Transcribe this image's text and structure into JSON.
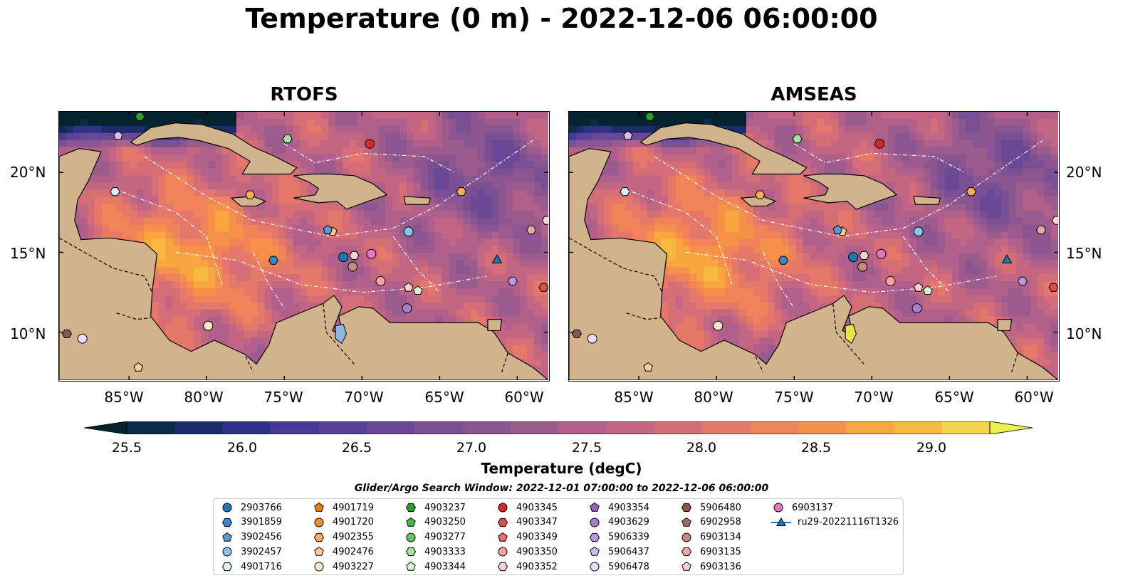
{
  "title": "Temperature (0 m) - 2022-12-06 06:00:00",
  "panels": [
    {
      "title": "RTOFS"
    },
    {
      "title": "AMSEAS"
    }
  ],
  "lat_labels": [
    "20°N",
    "15°N",
    "10°N"
  ],
  "lon_labels": [
    "85°W",
    "80°W",
    "75°W",
    "70°W",
    "65°W",
    "60°W"
  ],
  "colorbar": {
    "label": "Temperature (degC)",
    "ticks": [
      "25.5",
      "26.0",
      "26.5",
      "27.0",
      "27.5",
      "28.0",
      "28.5",
      "29.0"
    ],
    "colors": [
      "#05232e",
      "#0c2a4a",
      "#1c2c6a",
      "#2e3288",
      "#453a96",
      "#5a4198",
      "#6a4895",
      "#7a4f93",
      "#8a5590",
      "#9c5b8d",
      "#b0608a",
      "#c36684",
      "#d66e77",
      "#e6786a",
      "#f0835a",
      "#f7914a",
      "#f8a63f",
      "#f6ba40",
      "#f2d44d",
      "#eef04f"
    ]
  },
  "search_window": "Glider/Argo Search Window: 2022-12-01 07:00:00 to 2022-12-06 06:00:00",
  "legend": [
    {
      "label": "2903766",
      "color": "#1f77b4",
      "shape": "circle"
    },
    {
      "label": "3901859",
      "color": "#3d88c4",
      "shape": "hexagon"
    },
    {
      "label": "3902456",
      "color": "#5b9bd5",
      "shape": "pentagon"
    },
    {
      "label": "3902457",
      "color": "#8ec1e8",
      "shape": "circle"
    },
    {
      "label": "4901716",
      "color": "#dbeefb",
      "shape": "hexagon"
    },
    {
      "label": "4901719",
      "color": "#f07f0e",
      "shape": "pentagon"
    },
    {
      "label": "4901720",
      "color": "#f5922e",
      "shape": "circle"
    },
    {
      "label": "4902355",
      "color": "#f9ae5a",
      "shape": "hexagon"
    },
    {
      "label": "4902476",
      "color": "#fccb96",
      "shape": "pentagon"
    },
    {
      "label": "4903227",
      "color": "#fde5cc",
      "shape": "circle"
    },
    {
      "label": "4903237",
      "color": "#2ca02c",
      "shape": "hexagon"
    },
    {
      "label": "4903250",
      "color": "#45b345",
      "shape": "pentagon"
    },
    {
      "label": "4903277",
      "color": "#66c566",
      "shape": "circle"
    },
    {
      "label": "4903333",
      "color": "#a2e3a2",
      "shape": "hexagon"
    },
    {
      "label": "4903344",
      "color": "#d7f5d2",
      "shape": "pentagon"
    },
    {
      "label": "4903345",
      "color": "#d62728",
      "shape": "circle"
    },
    {
      "label": "4903347",
      "color": "#e04a4b",
      "shape": "hexagon"
    },
    {
      "label": "4903349",
      "color": "#ec6e6e",
      "shape": "pentagon"
    },
    {
      "label": "4903350",
      "color": "#f7a3a3",
      "shape": "circle"
    },
    {
      "label": "4903352",
      "color": "#fbd1d1",
      "shape": "hexagon"
    },
    {
      "label": "4903354",
      "color": "#9467bd",
      "shape": "pentagon"
    },
    {
      "label": "4903629",
      "color": "#a67fcc",
      "shape": "circle"
    },
    {
      "label": "5906339",
      "color": "#b99bdb",
      "shape": "hexagon"
    },
    {
      "label": "5906437",
      "color": "#d2bdee",
      "shape": "pentagon"
    },
    {
      "label": "5906478",
      "color": "#ecdcfa",
      "shape": "circle"
    },
    {
      "label": "5906480",
      "color": "#8c564b",
      "shape": "hexagon"
    },
    {
      "label": "6902958",
      "color": "#a36a5f",
      "shape": "pentagon"
    },
    {
      "label": "6903134",
      "color": "#c48a80",
      "shape": "circle"
    },
    {
      "label": "6903135",
      "color": "#e4aca2",
      "shape": "hexagon"
    },
    {
      "label": "6903136",
      "color": "#f7d2c7",
      "shape": "pentagon"
    },
    {
      "label": "6903137",
      "color": "#e377c2",
      "shape": "circle"
    },
    {
      "label": "ru29-20221116T1326",
      "color": "#1f77b4",
      "shape": "triangle-line"
    }
  ],
  "platforms": [
    {
      "id": "4903237",
      "lon": -84.3,
      "lat": 23.5
    },
    {
      "id": "5906437",
      "lon": -85.7,
      "lat": 22.3
    },
    {
      "id": "4903333",
      "lon": -74.8,
      "lat": 22.1
    },
    {
      "id": "4903345",
      "lon": -69.5,
      "lat": 21.8
    },
    {
      "id": "4901716",
      "lon": -85.9,
      "lat": 18.8
    },
    {
      "id": "4902355",
      "lon": -77.2,
      "lat": 18.6
    },
    {
      "id": "4902355",
      "lon": -63.6,
      "lat": 18.8
    },
    {
      "id": "3902457",
      "lon": -67.0,
      "lat": 16.3
    },
    {
      "id": "4902476",
      "lon": -71.9,
      "lat": 16.3
    },
    {
      "id": "3902456",
      "lon": -72.2,
      "lat": 16.4
    },
    {
      "id": "6903135",
      "lon": -59.1,
      "lat": 16.4
    },
    {
      "id": "3901859",
      "lon": -75.7,
      "lat": 14.5
    },
    {
      "id": "2903766",
      "lon": -71.2,
      "lat": 14.7
    },
    {
      "id": "4903352",
      "lon": -70.5,
      "lat": 14.8
    },
    {
      "id": "6903137",
      "lon": -69.4,
      "lat": 14.9
    },
    {
      "id": "6903134",
      "lon": -70.6,
      "lat": 14.1
    },
    {
      "id": "ru29-20221116T1326",
      "lon": -61.3,
      "lat": 14.5
    },
    {
      "id": "4903350",
      "lon": -68.8,
      "lat": 13.2
    },
    {
      "id": "5906339",
      "lon": -60.3,
      "lat": 13.2
    },
    {
      "id": "6903136",
      "lon": -67.0,
      "lat": 12.8
    },
    {
      "id": "4903344",
      "lon": -66.4,
      "lat": 12.6
    },
    {
      "id": "4903347",
      "lon": -58.3,
      "lat": 12.8
    },
    {
      "id": "4903629",
      "lon": -67.1,
      "lat": 11.5
    },
    {
      "id": "4903227",
      "lon": -79.9,
      "lat": 10.4
    },
    {
      "id": "5906480",
      "lon": -89.0,
      "lat": 9.9
    },
    {
      "id": "5906478",
      "lon": -88.0,
      "lat": 9.6
    },
    {
      "id": "4902476",
      "lon": -84.4,
      "lat": 7.8
    },
    {
      "id": "4903352",
      "lon": -58.1,
      "lat": 17.0
    }
  ]
}
